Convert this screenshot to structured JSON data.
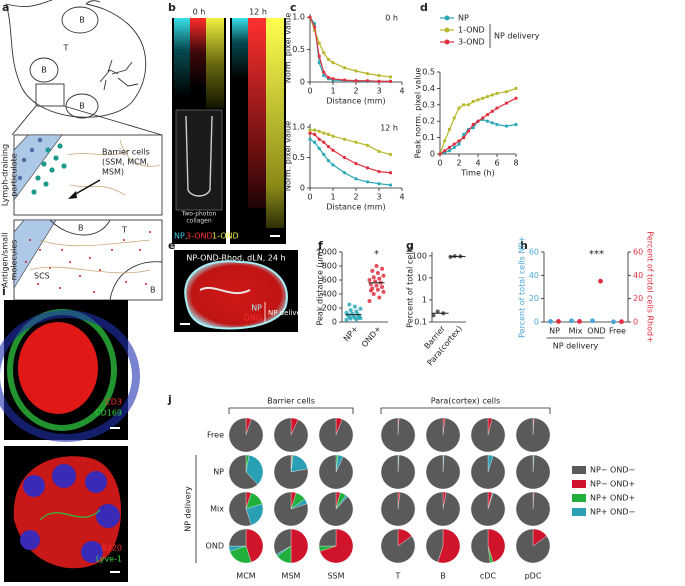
{
  "panel_labels": [
    "a",
    "b",
    "c",
    "d",
    "e",
    "f",
    "g",
    "h",
    "i",
    "j"
  ],
  "schematic": {
    "node_labels": [
      "B",
      "T",
      "B",
      "B"
    ],
    "top_box": {
      "side": [
        "Lymph-draining",
        "particulate"
      ],
      "cells": [
        "Barrier cells",
        "(SSM, MCM,",
        "MSM)"
      ]
    },
    "bottom_box": {
      "side": [
        "Antigen/small",
        "molecules"
      ],
      "zones": [
        "B",
        "T",
        "B",
        "SCS"
      ]
    }
  },
  "images": {
    "b": {
      "times": [
        "0 h",
        "12 h"
      ],
      "inset": [
        "Two-photon",
        "collagen"
      ],
      "legend": [
        "NP,",
        "3-OND",
        "1-OND"
      ]
    },
    "e": {
      "title": "NP-OND-Rhod, dLN, 24 h",
      "legend": [
        "NP",
        "OND"
      ],
      "note": "NP delivery"
    },
    "i": {
      "top": [
        "CD3",
        "CD169"
      ],
      "bottom": [
        "B220",
        "Lyve-1"
      ]
    }
  },
  "chart_data": [
    {
      "type": "line",
      "title": "0 h",
      "xlabel": "Distance (mm)",
      "ylabel": "Norm. pixel value",
      "x": [
        0,
        0.2,
        0.4,
        0.6,
        0.8,
        1.0,
        1.5,
        2,
        2.5,
        3,
        3.5
      ],
      "series": [
        {
          "name": "NP",
          "color": "#2aa9b8",
          "values": [
            1,
            0.9,
            0.3,
            0.1,
            0.05,
            0.03,
            0.02,
            0.02,
            0.01,
            0.01,
            0.01
          ]
        },
        {
          "name": "1-OND",
          "color": "#b8b82a",
          "values": [
            1,
            0.8,
            0.6,
            0.45,
            0.35,
            0.3,
            0.22,
            0.17,
            0.13,
            0.1,
            0.08
          ]
        },
        {
          "name": "3-OND",
          "color": "#e03040",
          "values": [
            1,
            0.85,
            0.4,
            0.15,
            0.07,
            0.05,
            0.03,
            0.02,
            0.02,
            0.01,
            0.01
          ]
        }
      ],
      "xlim": [
        0,
        4
      ],
      "xticks": [
        0,
        1,
        2,
        3,
        4
      ],
      "ylim": [
        0,
        1.05
      ],
      "yticks": [
        0,
        0.5,
        {
          "value": 1,
          "label": "1.0"
        }
      ]
    },
    {
      "type": "line",
      "title": "12 h",
      "xlabel": "Distance (mm)",
      "ylabel": "Norm. pixel value",
      "x": [
        0,
        0.2,
        0.4,
        0.6,
        0.8,
        1.0,
        1.5,
        2,
        2.5,
        3,
        3.5
      ],
      "series": [
        {
          "name": "NP",
          "color": "#2aa9b8",
          "values": [
            0.8,
            0.75,
            0.65,
            0.55,
            0.45,
            0.38,
            0.25,
            0.15,
            0.1,
            0.07,
            0.05
          ]
        },
        {
          "name": "1-OND",
          "color": "#b8b82a",
          "values": [
            0.95,
            0.95,
            0.93,
            0.9,
            0.88,
            0.85,
            0.8,
            0.75,
            0.7,
            0.6,
            0.55
          ]
        },
        {
          "name": "3-OND",
          "color": "#e03040",
          "values": [
            0.9,
            0.88,
            0.8,
            0.75,
            0.68,
            0.62,
            0.5,
            0.4,
            0.33,
            0.27,
            0.25
          ]
        }
      ],
      "xlim": [
        0,
        4
      ],
      "xticks": [
        0,
        1,
        2,
        3,
        4
      ],
      "ylim": [
        0,
        1.05
      ],
      "yticks": [
        0,
        0.5,
        {
          "value": 1,
          "label": "1.0"
        }
      ]
    },
    {
      "type": "line",
      "xlabel": "Time (h)",
      "ylabel": "Peak norm. pixel value",
      "legend": "top",
      "legend_note": "NP delivery",
      "x": [
        0,
        0.5,
        1,
        1.5,
        2,
        2.5,
        3,
        3.5,
        4,
        4.5,
        5,
        5.5,
        6,
        7,
        8
      ],
      "series": [
        {
          "name": "NP",
          "color": "#2aa9b8",
          "values": [
            0,
            0.01,
            0.02,
            0.04,
            0.06,
            0.12,
            0.15,
            0.16,
            0.2,
            0.21,
            0.2,
            0.19,
            0.18,
            0.17,
            0.18
          ]
        },
        {
          "name": "1-OND",
          "color": "#b8b82a",
          "values": [
            0,
            0.08,
            0.15,
            0.22,
            0.28,
            0.3,
            0.3,
            0.32,
            0.33,
            0.34,
            0.35,
            0.36,
            0.37,
            0.38,
            0.4
          ]
        },
        {
          "name": "3-OND",
          "color": "#e03040",
          "values": [
            0,
            0.02,
            0.04,
            0.06,
            0.08,
            0.1,
            0.14,
            0.18,
            0.2,
            0.22,
            0.24,
            0.26,
            0.28,
            0.31,
            0.34
          ]
        }
      ],
      "xlim": [
        0,
        8
      ],
      "xticks": [
        0,
        2,
        4,
        6,
        8
      ],
      "ylim": [
        0,
        0.5
      ],
      "yticks": [
        0,
        0.1,
        0.2,
        0.3,
        0.4,
        0.5
      ]
    },
    {
      "type": "strip",
      "ylabel": "Peak distance (μm)",
      "categories": [
        "NP+",
        "OND+"
      ],
      "colors": [
        "#2aa9b8",
        "#e03040"
      ],
      "values": [
        [
          30,
          40,
          50,
          55,
          60,
          70,
          80,
          90,
          100,
          110,
          120,
          130,
          150,
          170,
          190,
          220,
          250,
          60
        ],
        [
          300,
          350,
          400,
          430,
          460,
          480,
          500,
          520,
          540,
          560,
          580,
          600,
          620,
          640,
          660,
          700,
          730,
          760,
          800,
          450
        ]
      ],
      "means": [
        105,
        560
      ],
      "annotation": {
        "text": "*",
        "category": "OND+"
      },
      "ylim": [
        0,
        1000
      ],
      "yticks": [
        0,
        200,
        400,
        600,
        800,
        1000
      ]
    },
    {
      "type": "strip",
      "ylabel": "Percent of total cells",
      "log": true,
      "categories": [
        "Barrier",
        "Para(cortex)"
      ],
      "colors": [
        "#444",
        "#444"
      ],
      "values": [
        [
          0.2,
          0.25,
          0.3
        ],
        [
          90,
          95,
          98
        ]
      ],
      "means": [
        0.25,
        94
      ],
      "ylim": [
        0.1,
        150
      ],
      "yticks": [
        0.1,
        1,
        10,
        100
      ]
    },
    {
      "type": "dot",
      "ylabel": "Percent of total cells NP+",
      "y2label": "Percent of total cells Rhod+",
      "categories": [
        "NP",
        "Mix",
        "OND",
        "Free"
      ],
      "series": [
        {
          "name": "NP+",
          "color": "#4aa8d8",
          "values": [
            0.5,
            1,
            1,
            0.2
          ]
        },
        {
          "name": "Rhod+",
          "color": "#e03040",
          "axis": "y2",
          "values": [
            0.5,
            0.5,
            35,
            0.3
          ]
        }
      ],
      "annotation": {
        "text": "***",
        "category": "OND"
      },
      "group": {
        "text": "NP delivery",
        "categories": [
          "NP",
          "Mix",
          "OND"
        ]
      },
      "ylim": [
        0,
        60
      ],
      "yticks": [
        0,
        20,
        40,
        60
      ],
      "y2lim": [
        0,
        60
      ],
      "y2ticks": [
        0,
        20,
        40,
        60
      ]
    }
  ],
  "pie_grid": {
    "group_labels": [
      "Barrier cells",
      "Para(cortex) cells"
    ],
    "side_label": "NP delivery",
    "rows": [
      "Free",
      "NP",
      "Mix",
      "OND"
    ],
    "columns": [
      "MCM",
      "MSM",
      "SSM",
      "T",
      "B",
      "cDC",
      "pDC"
    ],
    "legend": [
      {
        "name": "NP− OND−",
        "color": "#5a5a5a"
      },
      {
        "name": "NP− OND+",
        "color": "#d0142c"
      },
      {
        "name": "NP+ OND+",
        "color": "#22b03c"
      },
      {
        "name": "NP+ OND−",
        "color": "#2aa0b4"
      }
    ],
    "values": [
      [
        [
          95,
          5,
          0,
          0
        ],
        [
          93,
          7,
          0,
          0
        ],
        [
          94,
          6,
          0,
          0
        ],
        [
          99,
          1,
          0,
          0
        ],
        [
          98,
          2,
          0,
          0
        ],
        [
          96,
          4,
          0,
          0
        ],
        [
          99,
          1,
          0,
          0
        ]
      ],
      [
        [
          62,
          0,
          3,
          35
        ],
        [
          78,
          1,
          1,
          20
        ],
        [
          93,
          0,
          2,
          5
        ],
        [
          99,
          0,
          0,
          1
        ],
        [
          99,
          0,
          0,
          1
        ],
        [
          95,
          0,
          0,
          5
        ],
        [
          99,
          0,
          0,
          1
        ]
      ],
      [
        [
          55,
          5,
          15,
          25
        ],
        [
          80,
          5,
          10,
          5
        ],
        [
          88,
          4,
          6,
          2
        ],
        [
          98,
          2,
          0,
          0
        ],
        [
          97,
          3,
          0,
          0
        ],
        [
          95,
          4,
          0,
          1
        ],
        [
          99,
          1,
          0,
          0
        ]
      ],
      [
        [
          25,
          45,
          25,
          5
        ],
        [
          33,
          50,
          15,
          2
        ],
        [
          25,
          70,
          5,
          0
        ],
        [
          85,
          15,
          0,
          0
        ],
        [
          45,
          55,
          0,
          0
        ],
        [
          52,
          45,
          3,
          0
        ],
        [
          85,
          15,
          0,
          0
        ]
      ]
    ]
  }
}
